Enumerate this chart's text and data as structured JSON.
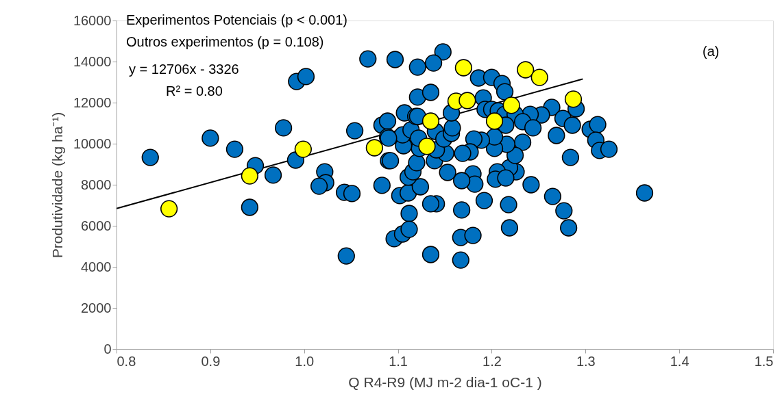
{
  "chart_data": {
    "type": "scatter",
    "xlabel": "Q R4-R9 (MJ m-2 dia-1 oC-1 )",
    "ylabel": "Produtividade (kg ha⁻¹)",
    "annotations": [
      "Experimentos Potenciais (p < 0.001)",
      "Outros experimentos (p = 0.108)",
      "y = 12706x - 3326",
      "R² = 0.80",
      "(a)"
    ],
    "xlim": [
      0.8,
      1.5
    ],
    "xticks": [
      {
        "value": 0.8,
        "label": "0.8"
      },
      {
        "value": 0.9,
        "label": "0.9"
      },
      {
        "value": 1.0,
        "label": "1.0"
      },
      {
        "value": 1.1,
        "label": "1.1"
      },
      {
        "value": 1.2,
        "label": "1.2"
      },
      {
        "value": 1.3,
        "label": "1.3"
      },
      {
        "value": 1.4,
        "label": "1.4"
      },
      {
        "value": 1.5,
        "label": "1.5"
      }
    ],
    "ylim": [
      0,
      16000
    ],
    "yticks": [
      0,
      2000,
      4000,
      6000,
      8000,
      10000,
      12000,
      14000,
      16000
    ],
    "grid": false,
    "marker": "circle",
    "series": [
      {
        "type": "line",
        "color": "#000000",
        "marker": "none",
        "line_style": "solid",
        "x": [
          0.8,
          1.297
        ],
        "values": [
          6840,
          13150
        ]
      },
      {
        "type": "scatter",
        "color": "#0070c0",
        "x": [
          0.836,
          0.9,
          0.926,
          0.948,
          0.967,
          0.942,
          0.978,
          0.991,
          0.992,
          1.002,
          1.022,
          1.023,
          1.016,
          1.043,
          1.051,
          1.045,
          1.054,
          1.068,
          1.083,
          1.083,
          1.089,
          1.089,
          1.09,
          1.097,
          1.148,
          1.138,
          1.121,
          1.186,
          1.2,
          1.211,
          1.214,
          1.121,
          1.135,
          1.191,
          1.29,
          1.264,
          1.253,
          1.241,
          1.193,
          1.2,
          1.207,
          1.214,
          1.225,
          1.233,
          1.244,
          1.276,
          1.286,
          1.215,
          1.269,
          1.305,
          1.313,
          1.311,
          1.315,
          1.325,
          1.284,
          1.363,
          1.265,
          1.277,
          1.282,
          1.242,
          1.219,
          1.218,
          1.192,
          1.226,
          1.219,
          1.206,
          1.204,
          1.215,
          1.233,
          1.225,
          1.216,
          1.203,
          1.203,
          1.189,
          1.181,
          1.177,
          1.169,
          1.18,
          1.182,
          1.168,
          1.153,
          1.168,
          1.167,
          1.18,
          1.167,
          1.135,
          1.141,
          1.135,
          1.112,
          1.096,
          1.105,
          1.112,
          1.102,
          1.111,
          1.124,
          1.092,
          1.111,
          1.116,
          1.12,
          1.139,
          1.151,
          1.141,
          1.123,
          1.106,
          1.105,
          1.09,
          1.114,
          1.122,
          1.14,
          1.149,
          1.157,
          1.158,
          1.107,
          1.119,
          1.121,
          1.157
        ],
        "values": [
          9330,
          10270,
          9730,
          8930,
          8470,
          6900,
          10770,
          9200,
          13030,
          13270,
          8630,
          8100,
          7930,
          7630,
          7570,
          4530,
          10630,
          14130,
          7970,
          10900,
          11100,
          10330,
          9170,
          14100,
          14470,
          13930,
          13730,
          13200,
          13230,
          12930,
          12530,
          12270,
          12500,
          12230,
          11700,
          11770,
          11400,
          11430,
          11670,
          11670,
          11600,
          11430,
          11430,
          11070,
          10770,
          11230,
          10900,
          10900,
          10400,
          10700,
          10930,
          10170,
          9670,
          9730,
          9330,
          7600,
          7430,
          6730,
          5900,
          8000,
          5900,
          7030,
          7230,
          8630,
          8830,
          8630,
          8270,
          8330,
          10070,
          9430,
          9970,
          9770,
          10330,
          10170,
          10230,
          9600,
          9530,
          8530,
          8030,
          8200,
          8600,
          6770,
          5430,
          5530,
          4330,
          4600,
          7070,
          7070,
          6600,
          5370,
          5600,
          5830,
          7470,
          7600,
          7900,
          9170,
          8370,
          8630,
          9070,
          9170,
          9530,
          9700,
          9770,
          9900,
          10430,
          10270,
          10670,
          10270,
          10600,
          10230,
          10500,
          10770,
          11500,
          11330,
          11330,
          11500
        ]
      },
      {
        "type": "scatter",
        "color": "#ffff00",
        "x": [
          0.856,
          0.942,
          0.999,
          1.075,
          1.17,
          1.236,
          1.251,
          1.162,
          1.174,
          1.221,
          1.287,
          1.203,
          1.131,
          1.135
        ],
        "values": [
          6830,
          8430,
          9730,
          9800,
          13700,
          13600,
          13230,
          12070,
          12100,
          11870,
          12170,
          11100,
          9870,
          11100
        ]
      }
    ]
  }
}
